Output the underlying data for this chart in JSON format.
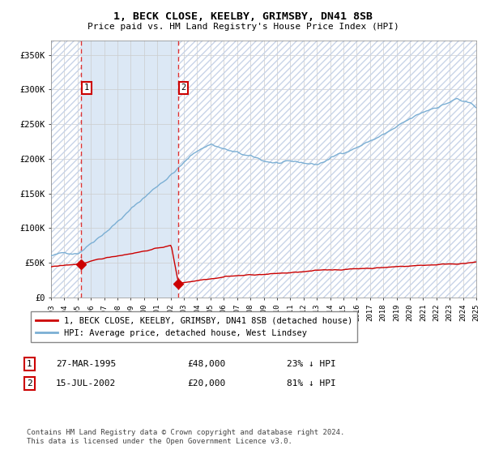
{
  "title": "1, BECK CLOSE, KEELBY, GRIMSBY, DN41 8SB",
  "subtitle": "Price paid vs. HM Land Registry's House Price Index (HPI)",
  "legend_line1": "1, BECK CLOSE, KEELBY, GRIMSBY, DN41 8SB (detached house)",
  "legend_line2": "HPI: Average price, detached house, West Lindsey",
  "table_row1": [
    "1",
    "27-MAR-1995",
    "£48,000",
    "23% ↓ HPI"
  ],
  "table_row2": [
    "2",
    "15-JUL-2002",
    "£20,000",
    "81% ↓ HPI"
  ],
  "footnote": "Contains HM Land Registry data © Crown copyright and database right 2024.\nThis data is licensed under the Open Government Licence v3.0.",
  "sale1_date_num": 1995.23,
  "sale1_price": 48000,
  "sale2_date_num": 2002.54,
  "sale2_price": 20000,
  "hpi_line_color": "#7bafd4",
  "price_color": "#cc0000",
  "sale_marker_color": "#cc0000",
  "hatch_color": "#c8d4e8",
  "between_sales_color": "#dce8f5",
  "ylim_max": 370000,
  "grid_color": "#cccccc",
  "year_start": 1993,
  "year_end": 2025,
  "yticks": [
    0,
    50000,
    100000,
    150000,
    200000,
    250000,
    300000,
    350000
  ],
  "ytick_labels": [
    "£0",
    "£50K",
    "£100K",
    "£150K",
    "£200K",
    "£250K",
    "£300K",
    "£350K"
  ]
}
